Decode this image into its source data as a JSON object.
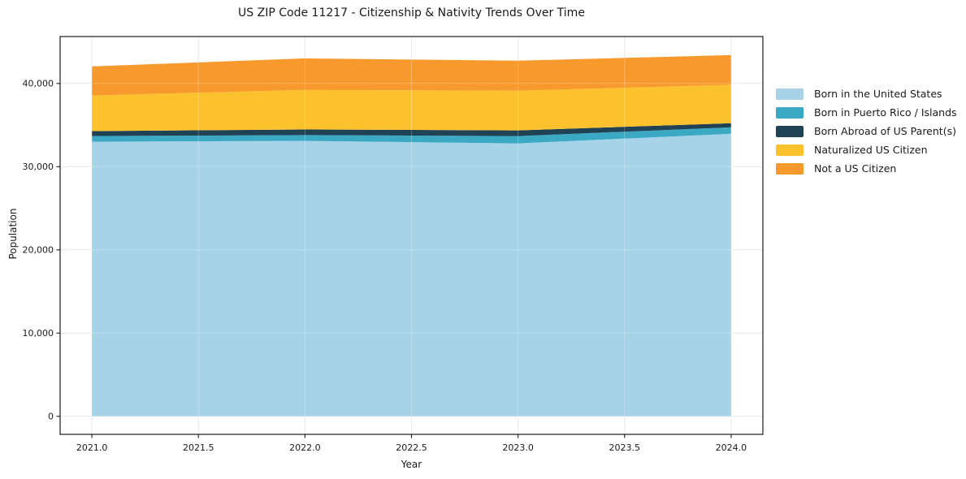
{
  "figure": {
    "background": "#ffffff",
    "text_color": "#1a1a1a",
    "spine_color": "#1a1a1a",
    "grid_color": "#e3e3e3"
  },
  "chart_data": {
    "type": "area",
    "stacked": true,
    "title": "US ZIP Code 11217 - Citizenship & Nativity Trends Over Time",
    "xlabel": "Year",
    "ylabel": "Population",
    "x": [
      2021,
      2022,
      2023,
      2024
    ],
    "series": [
      {
        "name": "Born in the United States",
        "color": "#a6d3e8",
        "values": [
          33000,
          33100,
          32800,
          33950
        ]
      },
      {
        "name": "Born in Puerto Rico / Islands",
        "color": "#3ca9c4",
        "values": [
          680,
          690,
          880,
          780
        ]
      },
      {
        "name": "Born Abroad of US Parent(s)",
        "color": "#1f4254",
        "values": [
          590,
          680,
          680,
          490
        ]
      },
      {
        "name": "Naturalized US Citizen",
        "color": "#fcc22e",
        "values": [
          4290,
          4750,
          4760,
          4630
        ]
      },
      {
        "name": "Not a US Citizen",
        "color": "#f7992c",
        "values": [
          3490,
          3800,
          3610,
          3560
        ]
      }
    ],
    "totals": [
      42050,
      43020,
      42730,
      43410
    ],
    "x_ticks": [
      {
        "value": 2021.0,
        "label": "2021.0"
      },
      {
        "value": 2021.5,
        "label": "2021.5"
      },
      {
        "value": 2022.0,
        "label": "2022.0"
      },
      {
        "value": 2022.5,
        "label": "2022.5"
      },
      {
        "value": 2023.0,
        "label": "2023.0"
      },
      {
        "value": 2023.5,
        "label": "2023.5"
      },
      {
        "value": 2024.0,
        "label": "2024.0"
      }
    ],
    "y_ticks": [
      {
        "value": 0,
        "label": "0"
      },
      {
        "value": 10000,
        "label": "10,000"
      },
      {
        "value": 20000,
        "label": "20,000"
      },
      {
        "value": 30000,
        "label": "30,000"
      },
      {
        "value": 40000,
        "label": "40,000"
      }
    ],
    "xlim": [
      2020.851,
      2024.149
    ],
    "ylim": [
      -2170,
      45640
    ],
    "grid": true,
    "legend_position": "right-outside"
  }
}
